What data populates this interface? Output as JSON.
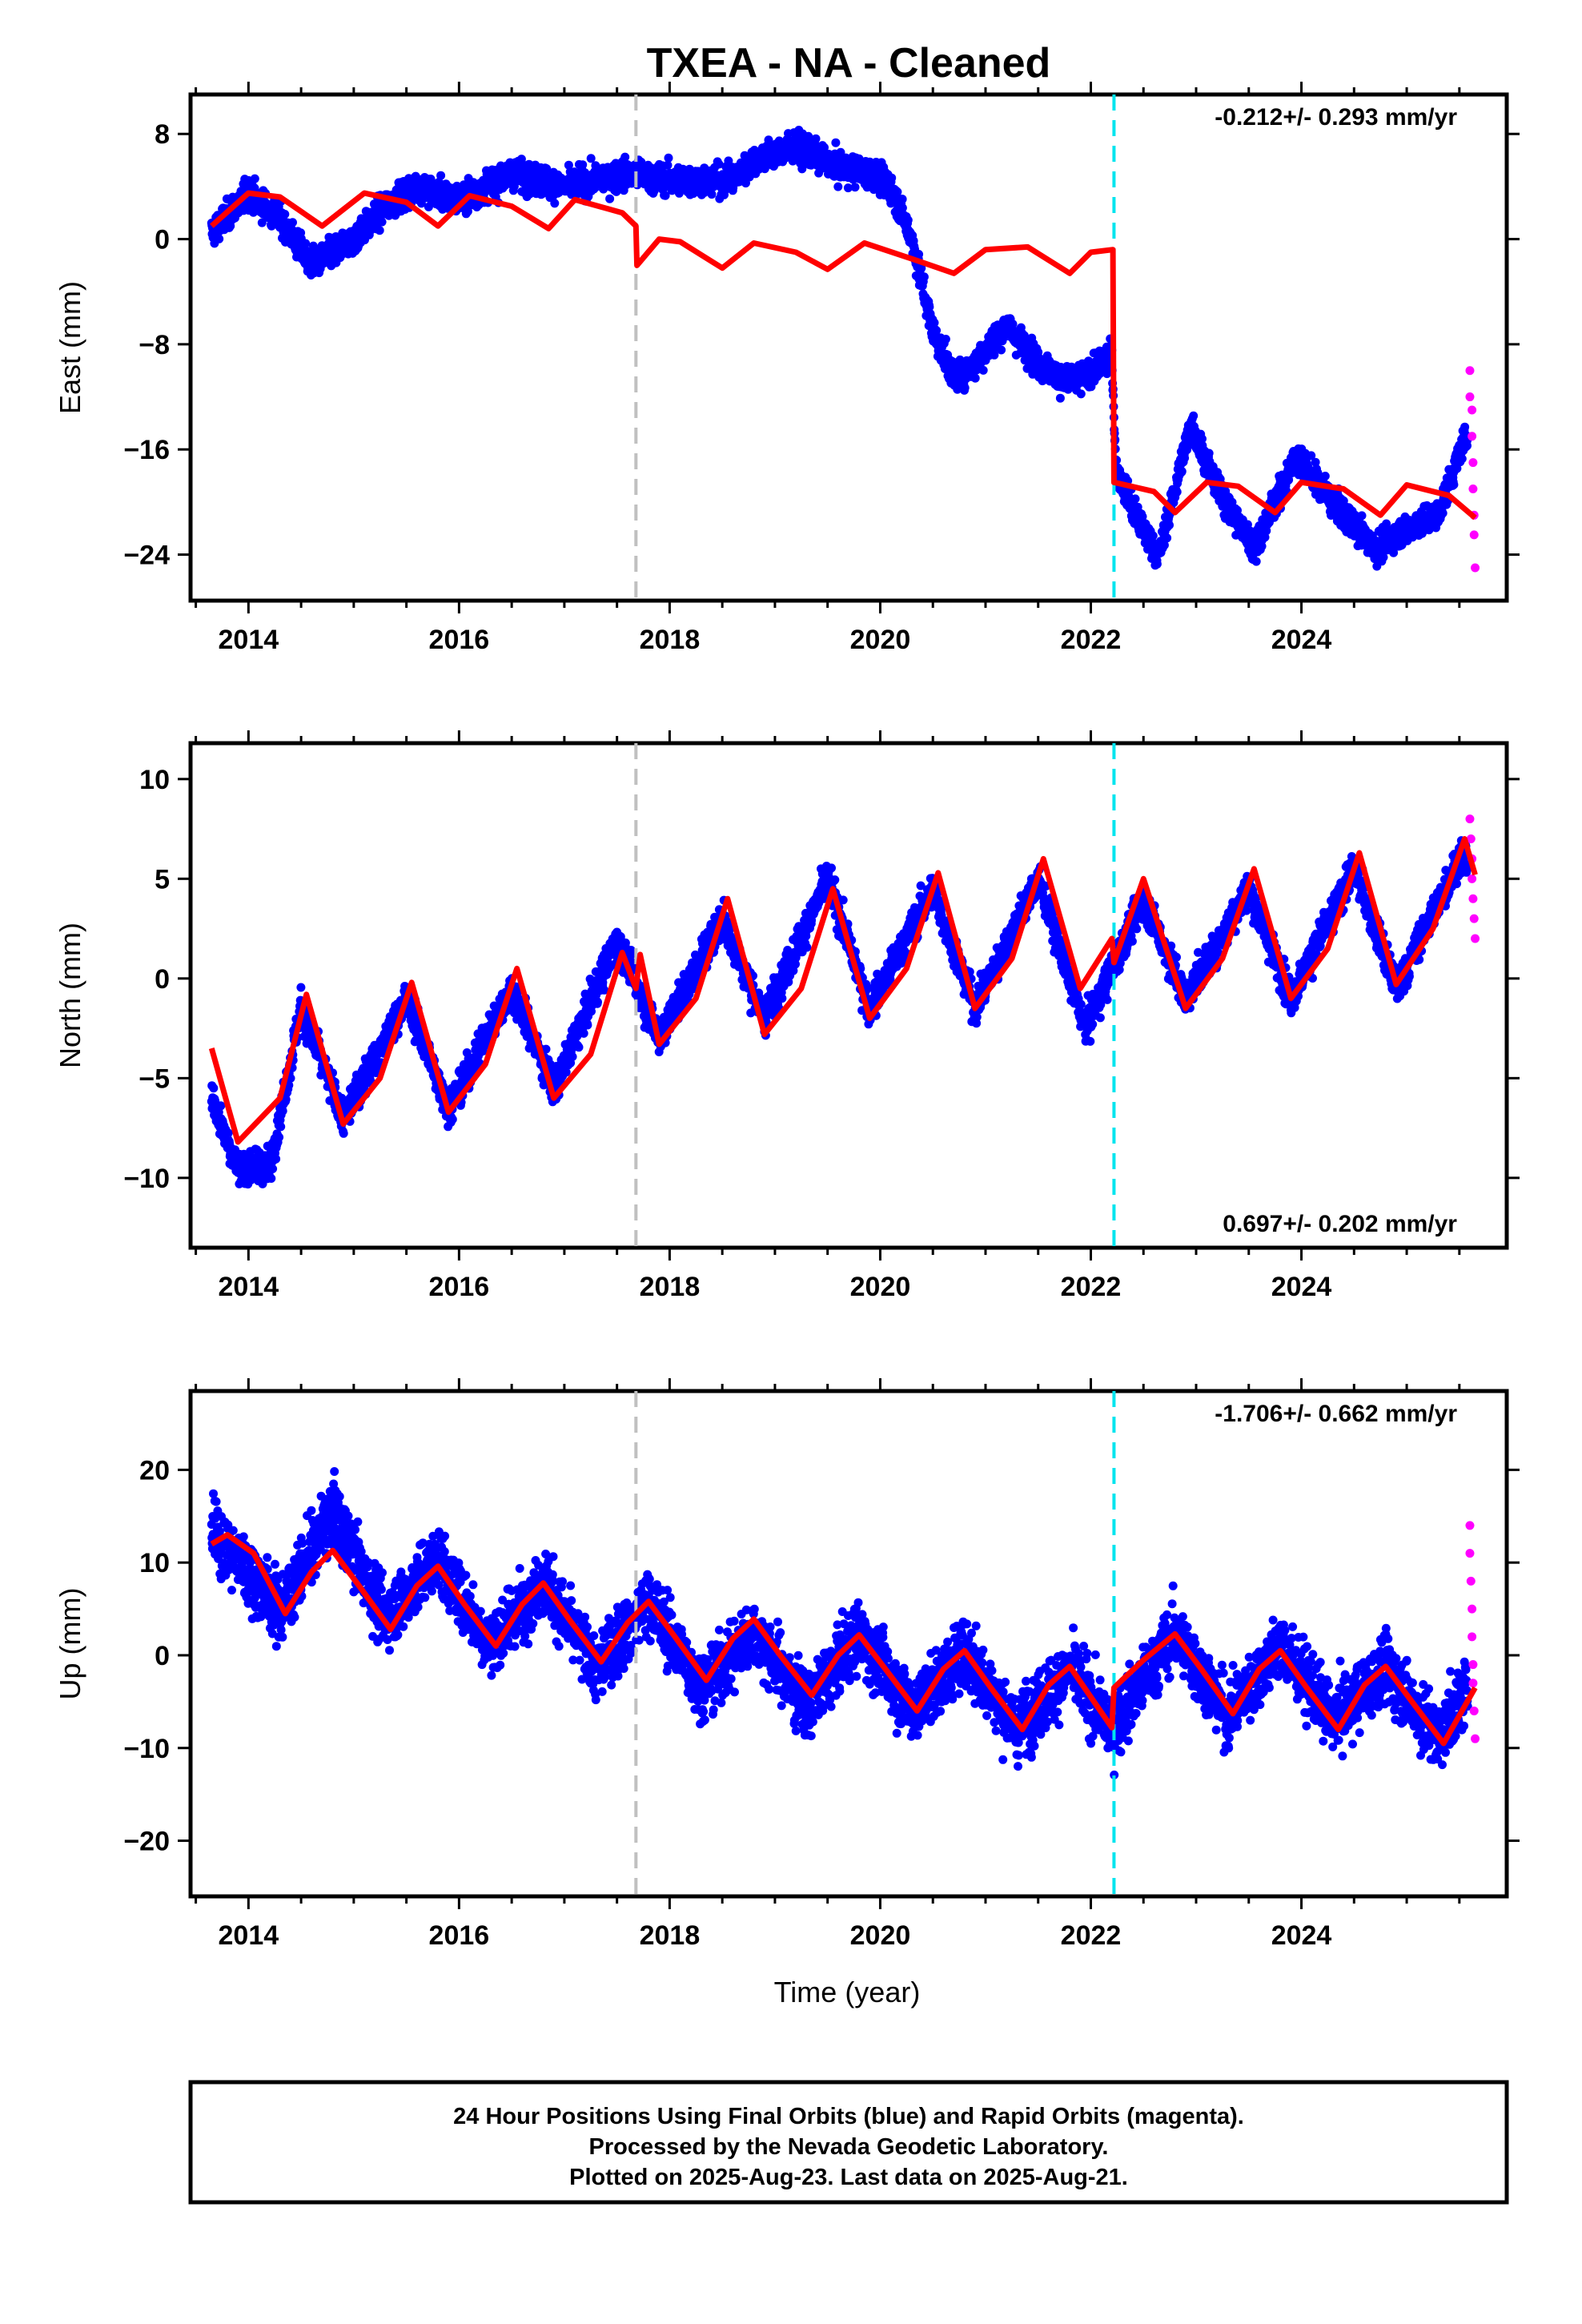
{
  "title": "TXEA  - NA - Cleaned",
  "xlabel": "Time (year)",
  "footer": {
    "line1": "24 Hour Positions Using Final Orbits (blue) and Rapid Orbits (magenta).",
    "line2": "Processed by the Nevada Geodetic Laboratory.",
    "line3": "Plotted on 2025-Aug-23. Last data on 2025-Aug-21."
  },
  "colors": {
    "final": "#0000ff",
    "rapid": "#ff00ff",
    "model": "#ff0000",
    "step_gray": "#c0c0c0",
    "step_cyan": "#00e5ee"
  },
  "chart_data": [
    {
      "type": "scatter",
      "component": "East",
      "ylabel": "East (mm)",
      "rate_label": "-0.212+/- 0.293 mm/yr",
      "xlim": [
        2013.45,
        2025.95
      ],
      "ylim": [
        -27.5,
        11
      ],
      "yticks": [
        8,
        0,
        -8,
        -16,
        -24
      ],
      "ytick_labels": [
        "8",
        "0",
        "−8",
        "−16",
        "−24"
      ],
      "xticks": [
        2014,
        2016,
        2018,
        2020,
        2022,
        2024
      ],
      "step_lines": [
        {
          "x": 2017.68,
          "style": "gray-dashed"
        },
        {
          "x": 2022.22,
          "style": "cyan-dashed"
        }
      ],
      "observed_trend": [
        [
          2013.65,
          0.5
        ],
        [
          2014.0,
          3.5
        ],
        [
          2014.3,
          1.5
        ],
        [
          2014.6,
          -2.0
        ],
        [
          2015.0,
          0.0
        ],
        [
          2015.3,
          2.5
        ],
        [
          2015.6,
          4.0
        ],
        [
          2016.0,
          3.0
        ],
        [
          2016.5,
          5.0
        ],
        [
          2017.0,
          4.0
        ],
        [
          2017.6,
          5.0
        ],
        [
          2018.0,
          4.5
        ],
        [
          2018.6,
          4.5
        ],
        [
          2018.8,
          6.0
        ],
        [
          2019.2,
          7.0
        ],
        [
          2019.6,
          5.5
        ],
        [
          2019.9,
          5.0
        ],
        [
          2020.1,
          4.0
        ],
        [
          2020.3,
          0.0
        ],
        [
          2020.5,
          -7.0
        ],
        [
          2020.7,
          -10.5
        ],
        [
          2020.9,
          -9.5
        ],
        [
          2021.2,
          -6.5
        ],
        [
          2021.5,
          -9.5
        ],
        [
          2021.8,
          -11.0
        ],
        [
          2022.0,
          -10.0
        ],
        [
          2022.2,
          -9.0
        ],
        [
          2022.24,
          -17.5
        ],
        [
          2022.45,
          -21.5
        ],
        [
          2022.65,
          -24.0
        ],
        [
          2022.95,
          -14.0
        ],
        [
          2023.2,
          -19.0
        ],
        [
          2023.55,
          -23.5
        ],
        [
          2023.95,
          -16.5
        ],
        [
          2024.3,
          -20.0
        ],
        [
          2024.7,
          -23.5
        ],
        [
          2025.0,
          -22.0
        ],
        [
          2025.3,
          -21.0
        ],
        [
          2025.6,
          -14.0
        ]
      ],
      "model_line": [
        [
          2013.65,
          1.0
        ],
        [
          2014.0,
          3.5
        ],
        [
          2014.3,
          3.2
        ],
        [
          2014.7,
          1.0
        ],
        [
          2015.1,
          3.5
        ],
        [
          2015.5,
          2.8
        ],
        [
          2015.8,
          1.0
        ],
        [
          2016.1,
          3.3
        ],
        [
          2016.5,
          2.5
        ],
        [
          2016.85,
          0.8
        ],
        [
          2017.1,
          3.0
        ],
        [
          2017.55,
          2.0
        ],
        [
          2017.68,
          1.0
        ],
        [
          2017.69,
          -2.0
        ],
        [
          2017.9,
          0.0
        ],
        [
          2018.1,
          -0.2
        ],
        [
          2018.5,
          -2.2
        ],
        [
          2018.8,
          -0.3
        ],
        [
          2019.2,
          -1.0
        ],
        [
          2019.5,
          -2.3
        ],
        [
          2019.85,
          -0.3
        ],
        [
          2020.3,
          -1.5
        ],
        [
          2020.7,
          -2.6
        ],
        [
          2021.0,
          -0.8
        ],
        [
          2021.4,
          -0.6
        ],
        [
          2021.8,
          -2.6
        ],
        [
          2022.0,
          -1.0
        ],
        [
          2022.21,
          -0.8
        ],
        [
          2022.22,
          -18.5
        ],
        [
          2022.6,
          -19.2
        ],
        [
          2022.8,
          -20.8
        ],
        [
          2023.1,
          -18.5
        ],
        [
          2023.4,
          -18.8
        ],
        [
          2023.75,
          -20.8
        ],
        [
          2024.0,
          -18.5
        ],
        [
          2024.4,
          -19.0
        ],
        [
          2024.75,
          -21.0
        ],
        [
          2025.0,
          -18.7
        ],
        [
          2025.4,
          -19.5
        ],
        [
          2025.65,
          -21.2
        ]
      ],
      "rapid_points": [
        [
          2025.6,
          -10
        ],
        [
          2025.6,
          -12
        ],
        [
          2025.62,
          -13
        ],
        [
          2025.62,
          -15
        ],
        [
          2025.63,
          -17
        ],
        [
          2025.63,
          -19
        ],
        [
          2025.64,
          -21
        ],
        [
          2025.64,
          -22.5
        ],
        [
          2025.65,
          -25
        ]
      ],
      "scatter_spread_mm": 1.4
    },
    {
      "type": "scatter",
      "component": "North",
      "ylabel": "North (mm)",
      "rate_label": "0.697+/- 0.202 mm/yr",
      "xlim": [
        2013.45,
        2025.95
      ],
      "ylim": [
        -13.5,
        11.8
      ],
      "yticks": [
        10,
        5,
        0,
        -5,
        -10
      ],
      "ytick_labels": [
        "10",
        "5",
        "0",
        "−5",
        "−10"
      ],
      "xticks": [
        2014,
        2016,
        2018,
        2020,
        2022,
        2024
      ],
      "step_lines": [
        {
          "x": 2017.68,
          "style": "gray-dashed"
        },
        {
          "x": 2022.22,
          "style": "cyan-dashed"
        }
      ],
      "observed_trend": [
        [
          2013.65,
          -6.0
        ],
        [
          2013.9,
          -9.5
        ],
        [
          2014.2,
          -9.5
        ],
        [
          2014.5,
          -1.5
        ],
        [
          2014.9,
          -7.0
        ],
        [
          2015.5,
          -1.0
        ],
        [
          2015.9,
          -6.5
        ],
        [
          2016.5,
          -0.5
        ],
        [
          2016.9,
          -5.5
        ],
        [
          2017.5,
          2.0
        ],
        [
          2017.9,
          -3.0
        ],
        [
          2018.5,
          3.0
        ],
        [
          2018.9,
          -2.0
        ],
        [
          2019.5,
          5.0
        ],
        [
          2019.9,
          -1.5
        ],
        [
          2020.5,
          4.5
        ],
        [
          2020.9,
          -1.5
        ],
        [
          2021.5,
          5.0
        ],
        [
          2021.95,
          -2.5
        ],
        [
          2022.5,
          4.0
        ],
        [
          2022.9,
          -1.0
        ],
        [
          2023.5,
          4.5
        ],
        [
          2023.9,
          -1.0
        ],
        [
          2024.5,
          5.5
        ],
        [
          2024.9,
          -0.5
        ],
        [
          2025.5,
          6.0
        ]
      ],
      "model_line": [
        [
          2013.65,
          -3.5
        ],
        [
          2013.9,
          -8.2
        ],
        [
          2014.3,
          -6.0
        ],
        [
          2014.55,
          -0.8
        ],
        [
          2014.9,
          -7.3
        ],
        [
          2015.25,
          -5.0
        ],
        [
          2015.55,
          -0.2
        ],
        [
          2015.9,
          -6.7
        ],
        [
          2016.25,
          -4.3
        ],
        [
          2016.55,
          0.5
        ],
        [
          2016.9,
          -6.0
        ],
        [
          2017.25,
          -3.8
        ],
        [
          2017.55,
          1.3
        ],
        [
          2017.68,
          -0.5
        ],
        [
          2017.72,
          1.2
        ],
        [
          2017.9,
          -3.3
        ],
        [
          2018.25,
          -1.0
        ],
        [
          2018.55,
          4.0
        ],
        [
          2018.9,
          -2.8
        ],
        [
          2019.25,
          -0.5
        ],
        [
          2019.55,
          4.5
        ],
        [
          2019.9,
          -2.0
        ],
        [
          2020.25,
          0.5
        ],
        [
          2020.55,
          5.3
        ],
        [
          2020.9,
          -1.5
        ],
        [
          2021.25,
          1.0
        ],
        [
          2021.55,
          6.0
        ],
        [
          2021.9,
          -0.5
        ],
        [
          2022.2,
          2.0
        ],
        [
          2022.22,
          0.8
        ],
        [
          2022.5,
          5.0
        ],
        [
          2022.9,
          -1.5
        ],
        [
          2023.25,
          1.0
        ],
        [
          2023.55,
          5.5
        ],
        [
          2023.9,
          -1.0
        ],
        [
          2024.25,
          1.5
        ],
        [
          2024.55,
          6.3
        ],
        [
          2024.9,
          -0.3
        ],
        [
          2025.25,
          2.5
        ],
        [
          2025.55,
          7.0
        ],
        [
          2025.65,
          5.2
        ]
      ],
      "rapid_points": [
        [
          2025.6,
          8
        ],
        [
          2025.61,
          7
        ],
        [
          2025.62,
          6
        ],
        [
          2025.62,
          5
        ],
        [
          2025.63,
          4
        ],
        [
          2025.64,
          3
        ],
        [
          2025.65,
          2
        ]
      ],
      "scatter_spread_mm": 1.1
    },
    {
      "type": "scatter",
      "component": "Up",
      "ylabel": "Up (mm)",
      "rate_label": "-1.706+/- 0.662 mm/yr",
      "xlim": [
        2013.45,
        2025.95
      ],
      "ylim": [
        -26,
        28.5
      ],
      "yticks": [
        20,
        10,
        0,
        -10,
        -20
      ],
      "ytick_labels": [
        "20",
        "10",
        "0",
        "−10",
        "−20"
      ],
      "xticks": [
        2014,
        2016,
        2018,
        2020,
        2022,
        2024
      ],
      "step_lines": [
        {
          "x": 2017.68,
          "style": "gray-dashed"
        },
        {
          "x": 2022.22,
          "style": "cyan-dashed"
        }
      ],
      "observed_trend": [
        [
          2013.65,
          13.5
        ],
        [
          2014.3,
          5.0
        ],
        [
          2014.8,
          15.5
        ],
        [
          2015.3,
          4.0
        ],
        [
          2015.8,
          10.5
        ],
        [
          2016.3,
          1.0
        ],
        [
          2016.8,
          8.0
        ],
        [
          2017.3,
          -1.5
        ],
        [
          2017.8,
          6.0
        ],
        [
          2018.3,
          -3.5
        ],
        [
          2018.8,
          2.5
        ],
        [
          2019.3,
          -5.5
        ],
        [
          2019.8,
          2.5
        ],
        [
          2020.3,
          -6.0
        ],
        [
          2020.8,
          0.5
        ],
        [
          2021.3,
          -8.0
        ],
        [
          2021.8,
          -1.5
        ],
        [
          2022.2,
          -8.0
        ],
        [
          2022.8,
          2.5
        ],
        [
          2023.3,
          -6.5
        ],
        [
          2023.8,
          1.0
        ],
        [
          2024.3,
          -7.0
        ],
        [
          2024.8,
          -1.5
        ],
        [
          2025.3,
          -9.0
        ],
        [
          2025.6,
          -3.0
        ]
      ],
      "model_line": [
        [
          2013.65,
          12.0
        ],
        [
          2013.8,
          13.0
        ],
        [
          2014.05,
          11.0
        ],
        [
          2014.35,
          4.5
        ],
        [
          2014.6,
          9.0
        ],
        [
          2014.8,
          11.3
        ],
        [
          2015.05,
          7.5
        ],
        [
          2015.35,
          2.8
        ],
        [
          2015.6,
          7.5
        ],
        [
          2015.8,
          9.6
        ],
        [
          2016.05,
          5.5
        ],
        [
          2016.35,
          1.0
        ],
        [
          2016.6,
          5.5
        ],
        [
          2016.8,
          7.8
        ],
        [
          2017.05,
          3.8
        ],
        [
          2017.35,
          -0.7
        ],
        [
          2017.6,
          3.5
        ],
        [
          2017.8,
          5.8
        ],
        [
          2018.05,
          2.0
        ],
        [
          2018.35,
          -2.7
        ],
        [
          2018.6,
          1.8
        ],
        [
          2018.8,
          3.9
        ],
        [
          2019.05,
          0.0
        ],
        [
          2019.35,
          -4.3
        ],
        [
          2019.6,
          0.0
        ],
        [
          2019.8,
          2.2
        ],
        [
          2020.05,
          -1.5
        ],
        [
          2020.35,
          -6.0
        ],
        [
          2020.6,
          -1.5
        ],
        [
          2020.8,
          0.5
        ],
        [
          2021.05,
          -3.5
        ],
        [
          2021.35,
          -8.0
        ],
        [
          2021.6,
          -3.2
        ],
        [
          2021.8,
          -1.2
        ],
        [
          2022.2,
          -7.8
        ],
        [
          2022.22,
          -3.5
        ],
        [
          2022.5,
          -0.5
        ],
        [
          2022.8,
          2.3
        ],
        [
          2023.05,
          -1.5
        ],
        [
          2023.35,
          -6.3
        ],
        [
          2023.6,
          -1.5
        ],
        [
          2023.8,
          0.5
        ],
        [
          2024.05,
          -3.5
        ],
        [
          2024.35,
          -8.0
        ],
        [
          2024.6,
          -3.2
        ],
        [
          2024.8,
          -1.2
        ],
        [
          2025.05,
          -5.0
        ],
        [
          2025.35,
          -9.5
        ],
        [
          2025.65,
          -3.5
        ]
      ],
      "rapid_points": [
        [
          2025.6,
          14
        ],
        [
          2025.6,
          11
        ],
        [
          2025.61,
          8
        ],
        [
          2025.62,
          5
        ],
        [
          2025.62,
          2
        ],
        [
          2025.63,
          -1
        ],
        [
          2025.63,
          -3
        ],
        [
          2025.64,
          -6
        ],
        [
          2025.65,
          -9
        ]
      ],
      "scatter_spread_mm": 4.5
    }
  ]
}
